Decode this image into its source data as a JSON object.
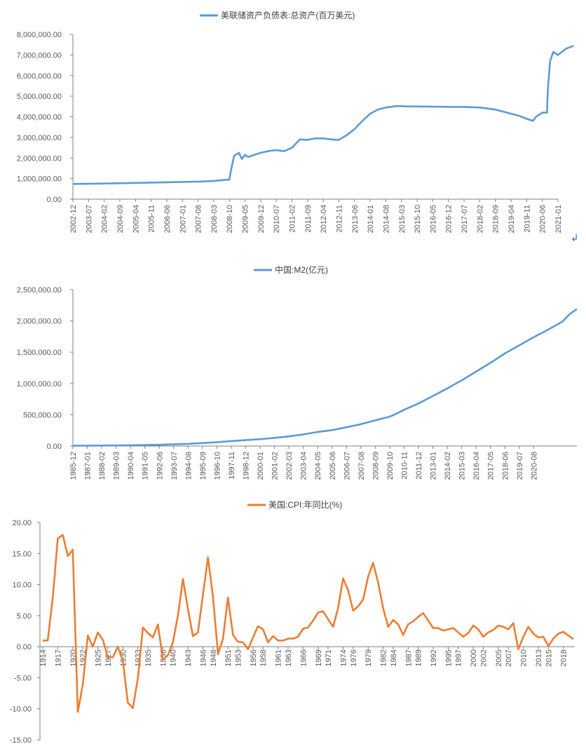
{
  "chart_data": [
    {
      "type": "line",
      "legend": "美联储资产负债表:总资产(百万美元)",
      "color": "#5b9bd5",
      "legend_position": "top",
      "grid": false,
      "ylim": [
        0,
        8000000
      ],
      "y_ticks": [
        "0.00",
        "1,000,000.00",
        "2,000,000.00",
        "3,000,000.00",
        "4,000,000.00",
        "5,000,000.00",
        "6,000,000.00",
        "7,000,000.00",
        "8,000,000.00"
      ],
      "x_ticks": [
        "2002-12",
        "2003-07",
        "2004-02",
        "2004-09",
        "2005-04",
        "2005-11",
        "2006-06",
        "2007-01",
        "2007-08",
        "2008-03",
        "2008-10",
        "2009-05",
        "2009-12",
        "2010-07",
        "2011-02",
        "2011-09",
        "2012-04",
        "2012-11",
        "2013-06",
        "2014-01",
        "2014-08",
        "2015-03",
        "2015-10",
        "2016-05",
        "2016-12",
        "2017-07",
        "2018-02",
        "2018-09",
        "2019-04",
        "2019-11",
        "2020-06",
        "2021-01"
      ],
      "series": [
        {
          "values": [
            [
              0,
              740000
            ],
            [
              2,
              760000
            ],
            [
              4,
              790000
            ],
            [
              6,
              820000
            ],
            [
              8,
              850000
            ],
            [
              9,
              880000
            ],
            [
              9.6,
              930000
            ],
            [
              10,
              950000
            ],
            [
              10.1,
              1400000
            ],
            [
              10.3,
              2100000
            ],
            [
              10.6,
              2250000
            ],
            [
              10.8,
              1950000
            ],
            [
              11,
              2150000
            ],
            [
              11.2,
              2050000
            ],
            [
              11.6,
              2150000
            ],
            [
              12,
              2250000
            ],
            [
              12.6,
              2350000
            ],
            [
              13,
              2380000
            ],
            [
              13.5,
              2330000
            ],
            [
              14,
              2500000
            ],
            [
              14.5,
              2900000
            ],
            [
              15,
              2880000
            ],
            [
              15.5,
              2950000
            ],
            [
              16,
              2950000
            ],
            [
              16.5,
              2900000
            ],
            [
              17,
              2880000
            ],
            [
              17.5,
              3100000
            ],
            [
              18,
              3400000
            ],
            [
              18.5,
              3800000
            ],
            [
              19,
              4150000
            ],
            [
              19.5,
              4350000
            ],
            [
              20,
              4450000
            ],
            [
              20.7,
              4520000
            ],
            [
              21.5,
              4500000
            ],
            [
              22,
              4500000
            ],
            [
              23,
              4490000
            ],
            [
              24,
              4480000
            ],
            [
              25,
              4480000
            ],
            [
              26,
              4450000
            ],
            [
              27,
              4350000
            ],
            [
              28,
              4150000
            ],
            [
              28.5,
              4050000
            ],
            [
              29,
              3900000
            ],
            [
              29.4,
              3800000
            ],
            [
              29.6,
              4000000
            ],
            [
              30,
              4200000
            ],
            [
              30.3,
              4200000
            ],
            [
              30.35,
              5300000
            ],
            [
              30.5,
              6700000
            ],
            [
              30.7,
              7150000
            ],
            [
              30.8,
              7100000
            ],
            [
              31,
              7000000
            ],
            [
              31.5,
              7300000
            ],
            [
              32,
              7450000
            ]
          ]
        }
      ]
    },
    {
      "type": "line",
      "legend": "中国:M2(亿元)",
      "color": "#5b9bd5",
      "legend_position": "top",
      "grid": false,
      "ylim": [
        0,
        2500000
      ],
      "y_ticks": [
        "0.00",
        "500,000.00",
        "1,000,000.00",
        "1,500,000.00",
        "2,000,000.00",
        "2,500,000.00"
      ],
      "x_ticks": [
        "1985-12",
        "1987-01",
        "1988-02",
        "1989-03",
        "1990-04",
        "1991-05",
        "1992-06",
        "1993-07",
        "1994-08",
        "1995-09",
        "1996-10",
        "1997-11",
        "1998-12",
        "2000-01",
        "2001-02",
        "2002-03",
        "2003-04",
        "2004-05",
        "2005-06",
        "2006-07",
        "2007-08",
        "2008-09",
        "2009-10",
        "2010-11",
        "2011-12",
        "2013-01",
        "2014-02",
        "2015-03",
        "2016-04",
        "2017-05",
        "2018-06",
        "2019-07",
        "2020-08"
      ],
      "series": [
        {
          "values": [
            [
              0,
              5000
            ],
            [
              2,
              8000
            ],
            [
              4,
              12000
            ],
            [
              6,
              20000
            ],
            [
              8,
              35000
            ],
            [
              10,
              60000
            ],
            [
              11,
              80000
            ],
            [
              13,
              110000
            ],
            [
              14,
              130000
            ],
            [
              15,
              155000
            ],
            [
              16,
              185000
            ],
            [
              17,
              225000
            ],
            [
              18,
              255000
            ],
            [
              19,
              300000
            ],
            [
              20,
              350000
            ],
            [
              21,
              410000
            ],
            [
              22,
              470000
            ],
            [
              22.5,
              520000
            ],
            [
              23,
              580000
            ],
            [
              24,
              680000
            ],
            [
              25,
              800000
            ],
            [
              26,
              920000
            ],
            [
              27,
              1050000
            ],
            [
              28,
              1190000
            ],
            [
              29,
              1330000
            ],
            [
              30,
              1480000
            ],
            [
              31,
              1610000
            ],
            [
              32,
              1740000
            ],
            [
              33,
              1860000
            ],
            [
              34,
              1990000
            ],
            [
              34.5,
              2110000
            ],
            [
              35,
              2190000
            ]
          ]
        }
      ]
    },
    {
      "type": "line",
      "legend": "美国:CPI:年同比(%)",
      "color": "#ed7d31",
      "legend_position": "top",
      "grid": false,
      "ylim": [
        -15,
        20
      ],
      "y_ticks": [
        "-15.00",
        "-10.00",
        "-5.00",
        "0.00",
        "5.00",
        "10.00",
        "15.00",
        "20.00"
      ],
      "x_ticks": [
        "1914",
        "1917",
        "1920",
        "1922",
        "1925",
        "1927",
        "1930",
        "1933",
        "1935",
        "1938",
        "1940",
        "1943",
        "1946",
        "1948",
        "1951",
        "1953",
        "1956",
        "1958",
        "1961",
        "1963",
        "1966",
        "1969",
        "1971",
        "1974",
        "1976",
        "1979",
        "1982",
        "1984",
        "1987",
        "1989",
        "1992",
        "1995",
        "1997",
        "2000",
        "2002",
        "2005",
        "2007",
        "2010",
        "2013",
        "2015",
        "2018"
      ],
      "x": [
        1914,
        1915,
        1916,
        1917,
        1918,
        1919,
        1920,
        1921,
        1922,
        1923,
        1924,
        1925,
        1926,
        1927,
        1928,
        1929,
        1930,
        1931,
        1932,
        1933,
        1934,
        1935,
        1936,
        1937,
        1938,
        1939,
        1940,
        1941,
        1942,
        1943,
        1944,
        1945,
        1946,
        1947,
        1948,
        1949,
        1950,
        1951,
        1952,
        1953,
        1954,
        1955,
        1956,
        1957,
        1958,
        1959,
        1960,
        1961,
        1962,
        1963,
        1964,
        1965,
        1966,
        1967,
        1968,
        1969,
        1970,
        1971,
        1972,
        1973,
        1974,
        1975,
        1976,
        1977,
        1978,
        1979,
        1980,
        1981,
        1982,
        1983,
        1984,
        1985,
        1986,
        1987,
        1988,
        1989,
        1990,
        1991,
        1992,
        1993,
        1994,
        1995,
        1996,
        1997,
        1998,
        1999,
        2000,
        2001,
        2002,
        2003,
        2004,
        2005,
        2006,
        2007,
        2008,
        2009,
        2010,
        2011,
        2012,
        2013,
        2014,
        2015,
        2016,
        2017,
        2018,
        2019,
        2020
      ],
      "series": [
        {
          "values": [
            1.0,
            1.0,
            7.9,
            17.4,
            18.0,
            14.6,
            15.6,
            -10.5,
            -6.1,
            1.8,
            0.0,
            2.3,
            1.1,
            -1.7,
            -1.7,
            0.0,
            -2.3,
            -9.0,
            -9.9,
            -5.1,
            3.1,
            2.2,
            1.5,
            3.6,
            -2.1,
            -1.4,
            0.7,
            5.0,
            10.9,
            6.1,
            1.7,
            2.3,
            8.3,
            14.4,
            8.1,
            -1.2,
            1.3,
            7.9,
            1.9,
            0.8,
            0.7,
            -0.4,
            1.5,
            3.3,
            2.8,
            0.7,
            1.7,
            1.0,
            1.0,
            1.3,
            1.3,
            1.6,
            2.9,
            3.1,
            4.2,
            5.5,
            5.7,
            4.4,
            3.2,
            6.2,
            11.0,
            9.1,
            5.8,
            6.5,
            7.6,
            11.3,
            13.5,
            10.3,
            6.2,
            3.2,
            4.3,
            3.6,
            1.9,
            3.6,
            4.1,
            4.8,
            5.4,
            4.2,
            3.0,
            3.0,
            2.6,
            2.8,
            3.0,
            2.3,
            1.6,
            2.2,
            3.4,
            2.8,
            1.6,
            2.3,
            2.7,
            3.4,
            3.2,
            2.8,
            3.8,
            -0.4,
            1.6,
            3.2,
            2.1,
            1.5,
            1.6,
            0.1,
            1.3,
            2.1,
            2.4,
            1.8,
            1.2
          ]
        }
      ]
    }
  ],
  "return_glyph": "↲"
}
